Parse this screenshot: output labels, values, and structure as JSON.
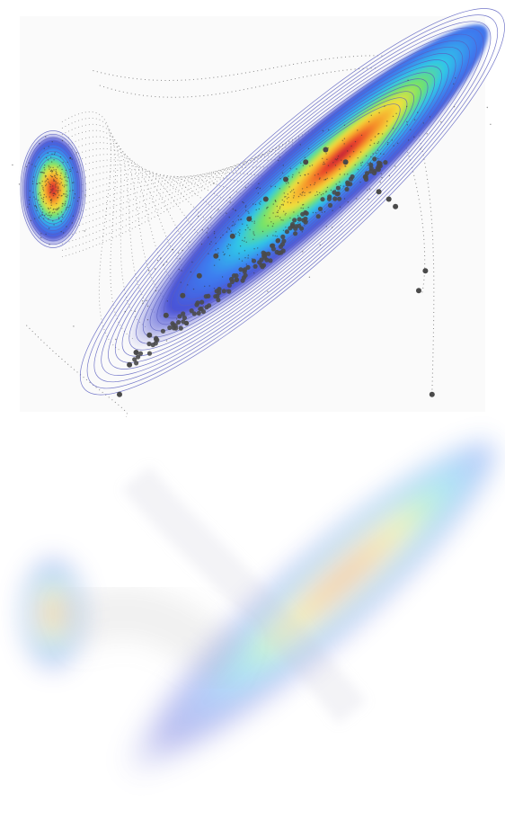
{
  "chart_data": [
    {
      "type": "scatter",
      "title": "",
      "xlabel": "",
      "ylabel": "",
      "grid": false,
      "legend": "none",
      "xlim": [
        -4,
        10
      ],
      "ylim": [
        -6,
        10
      ],
      "description_note_free": true,
      "densities": [
        {
          "name": "",
          "center": [
            -3,
            3
          ],
          "sd": [
            0.35,
            0.85
          ],
          "rotation_deg": 0,
          "contour_color": "#5a5fc0"
        },
        {
          "name": "",
          "center": [
            4.2,
            2.5
          ],
          "sd": [
            2.9,
            0.65
          ],
          "rotation_deg": 42,
          "contour_color": "#5a5fc0"
        }
      ],
      "colormap": [
        "#3b3fc8",
        "#3d7ef0",
        "#2fc7e8",
        "#74e36a",
        "#f2e13c",
        "#f79a2b",
        "#e8412c",
        "#b9213a"
      ],
      "highlight_points": [
        [
          -1.0,
          -5.3
        ],
        [
          8.4,
          -5.3
        ],
        [
          8.0,
          -1.1
        ],
        [
          8.2,
          -0.3
        ],
        [
          7.3,
          2.3
        ],
        [
          7.1,
          2.6
        ],
        [
          6.8,
          2.9
        ],
        [
          6.4,
          3.5
        ],
        [
          5.8,
          4.1
        ],
        [
          5.2,
          4.6
        ],
        [
          4.6,
          4.1
        ],
        [
          4.0,
          3.4
        ],
        [
          3.4,
          2.6
        ],
        [
          2.9,
          1.8
        ],
        [
          2.4,
          1.1
        ],
        [
          1.9,
          0.3
        ],
        [
          1.4,
          -0.5
        ],
        [
          0.9,
          -1.3
        ],
        [
          0.4,
          -2.1
        ],
        [
          -0.1,
          -2.9
        ],
        [
          -0.5,
          -3.6
        ],
        [
          -0.7,
          -4.1
        ]
      ],
      "highlight_color": "#4a4a4a",
      "path_color": "#6e6e6e"
    },
    {
      "type": "heatmap",
      "title": "",
      "xlabel": "",
      "ylabel": "",
      "grid": false,
      "legend": "none",
      "style": "blurred",
      "xlim": [
        -4,
        10
      ],
      "ylim": [
        -6,
        10
      ]
    }
  ]
}
